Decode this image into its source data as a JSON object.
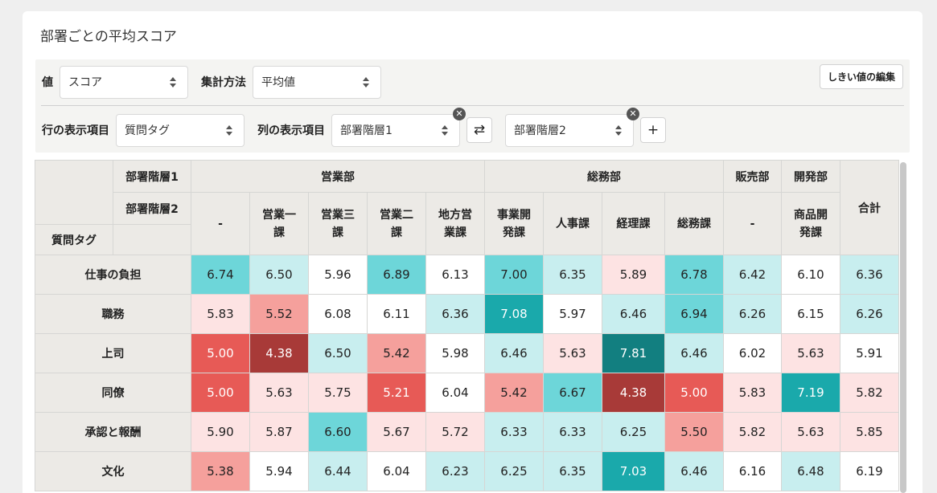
{
  "page": {
    "title": "部署ごとの平均スコア"
  },
  "controls": {
    "value_label": "値",
    "value_select": "スコア",
    "agg_label": "集計方法",
    "agg_select": "平均値",
    "threshold_button": "しきい値の編集",
    "row_label": "行の表示項目",
    "row_select": "質問タグ",
    "col_label": "列の表示項目",
    "col_select1": "部署階層1",
    "col_select2": "部署階層2",
    "swap_icon": "⇄",
    "add_icon": "+",
    "remove_icon": "✕"
  },
  "table": {
    "level1_label": "部署階層1",
    "level2_label": "部署階層2",
    "row_header_label": "質問タグ",
    "total_label": "合計",
    "groups": [
      {
        "name": "営業部",
        "span": 5
      },
      {
        "name": "総務部",
        "span": 4
      },
      {
        "name": "販売部",
        "span": 1
      },
      {
        "name": "開発部",
        "span": 1
      }
    ],
    "subcolumns": [
      [
        "-"
      ],
      [
        "営業一",
        "課"
      ],
      [
        "営業三",
        "課"
      ],
      [
        "営業二",
        "課"
      ],
      [
        "地方営",
        "業課"
      ],
      [
        "事業開",
        "発課"
      ],
      [
        "人事課"
      ],
      [
        "経理課"
      ],
      [
        "総務課"
      ],
      [
        "-"
      ],
      [
        "商品開",
        "発課"
      ]
    ],
    "rows": [
      {
        "label": "仕事の負担",
        "values": [
          "6.74",
          "6.50",
          "5.96",
          "6.89",
          "6.13",
          "7.00",
          "6.35",
          "5.89",
          "6.78",
          "6.42",
          "6.10",
          "6.36"
        ],
        "colors": [
          "#6dd6d9",
          "#c8eeef",
          "#ffffff",
          "#6dd6d9",
          "#ffffff",
          "#6dd6d9",
          "#c8eeef",
          "#fde3e3",
          "#6dd6d9",
          "#c8eeef",
          "#ffffff",
          "#c8eeef"
        ]
      },
      {
        "label": "職務",
        "values": [
          "5.83",
          "5.52",
          "6.08",
          "6.11",
          "6.36",
          "7.08",
          "5.97",
          "6.46",
          "6.94",
          "6.26",
          "6.15",
          "6.26"
        ],
        "colors": [
          "#fde3e3",
          "#f5a09c",
          "#ffffff",
          "#ffffff",
          "#c8eeef",
          "#1aa9ab",
          "#ffffff",
          "#c8eeef",
          "#6dd6d9",
          "#c8eeef",
          "#ffffff",
          "#c8eeef"
        ]
      },
      {
        "label": "上司",
        "values": [
          "5.00",
          "4.38",
          "6.50",
          "5.42",
          "5.98",
          "6.46",
          "5.63",
          "7.81",
          "6.46",
          "6.02",
          "5.63",
          "5.91"
        ],
        "colors": [
          "#e75a56",
          "#a83a38",
          "#c8eeef",
          "#f5a09c",
          "#ffffff",
          "#c8eeef",
          "#fde3e3",
          "#127f80",
          "#c8eeef",
          "#ffffff",
          "#fde3e3",
          "#ffffff"
        ]
      },
      {
        "label": "同僚",
        "values": [
          "5.00",
          "5.63",
          "5.75",
          "5.21",
          "6.04",
          "5.42",
          "6.67",
          "4.38",
          "5.00",
          "5.83",
          "7.19",
          "5.82"
        ],
        "colors": [
          "#e75a56",
          "#fde3e3",
          "#fde3e3",
          "#e75a56",
          "#ffffff",
          "#f5a09c",
          "#6dd6d9",
          "#a83a38",
          "#e75a56",
          "#fde3e3",
          "#1aa9ab",
          "#fde3e3"
        ]
      },
      {
        "label": "承認と報酬",
        "values": [
          "5.90",
          "5.87",
          "6.60",
          "5.67",
          "5.72",
          "6.33",
          "6.33",
          "6.25",
          "5.50",
          "5.82",
          "5.63",
          "5.85"
        ],
        "colors": [
          "#fde3e3",
          "#fde3e3",
          "#6dd6d9",
          "#fde3e3",
          "#fde3e3",
          "#c8eeef",
          "#c8eeef",
          "#c8eeef",
          "#f5a09c",
          "#fde3e3",
          "#fde3e3",
          "#fde3e3"
        ]
      },
      {
        "label": "文化",
        "values": [
          "5.38",
          "5.94",
          "6.44",
          "6.04",
          "6.23",
          "6.25",
          "6.35",
          "7.03",
          "6.46",
          "6.16",
          "6.48",
          "6.19"
        ],
        "colors": [
          "#f5a09c",
          "#ffffff",
          "#c8eeef",
          "#ffffff",
          "#c8eeef",
          "#c8eeef",
          "#c8eeef",
          "#1aa9ab",
          "#c8eeef",
          "#ffffff",
          "#c8eeef",
          "#ffffff"
        ]
      }
    ]
  }
}
